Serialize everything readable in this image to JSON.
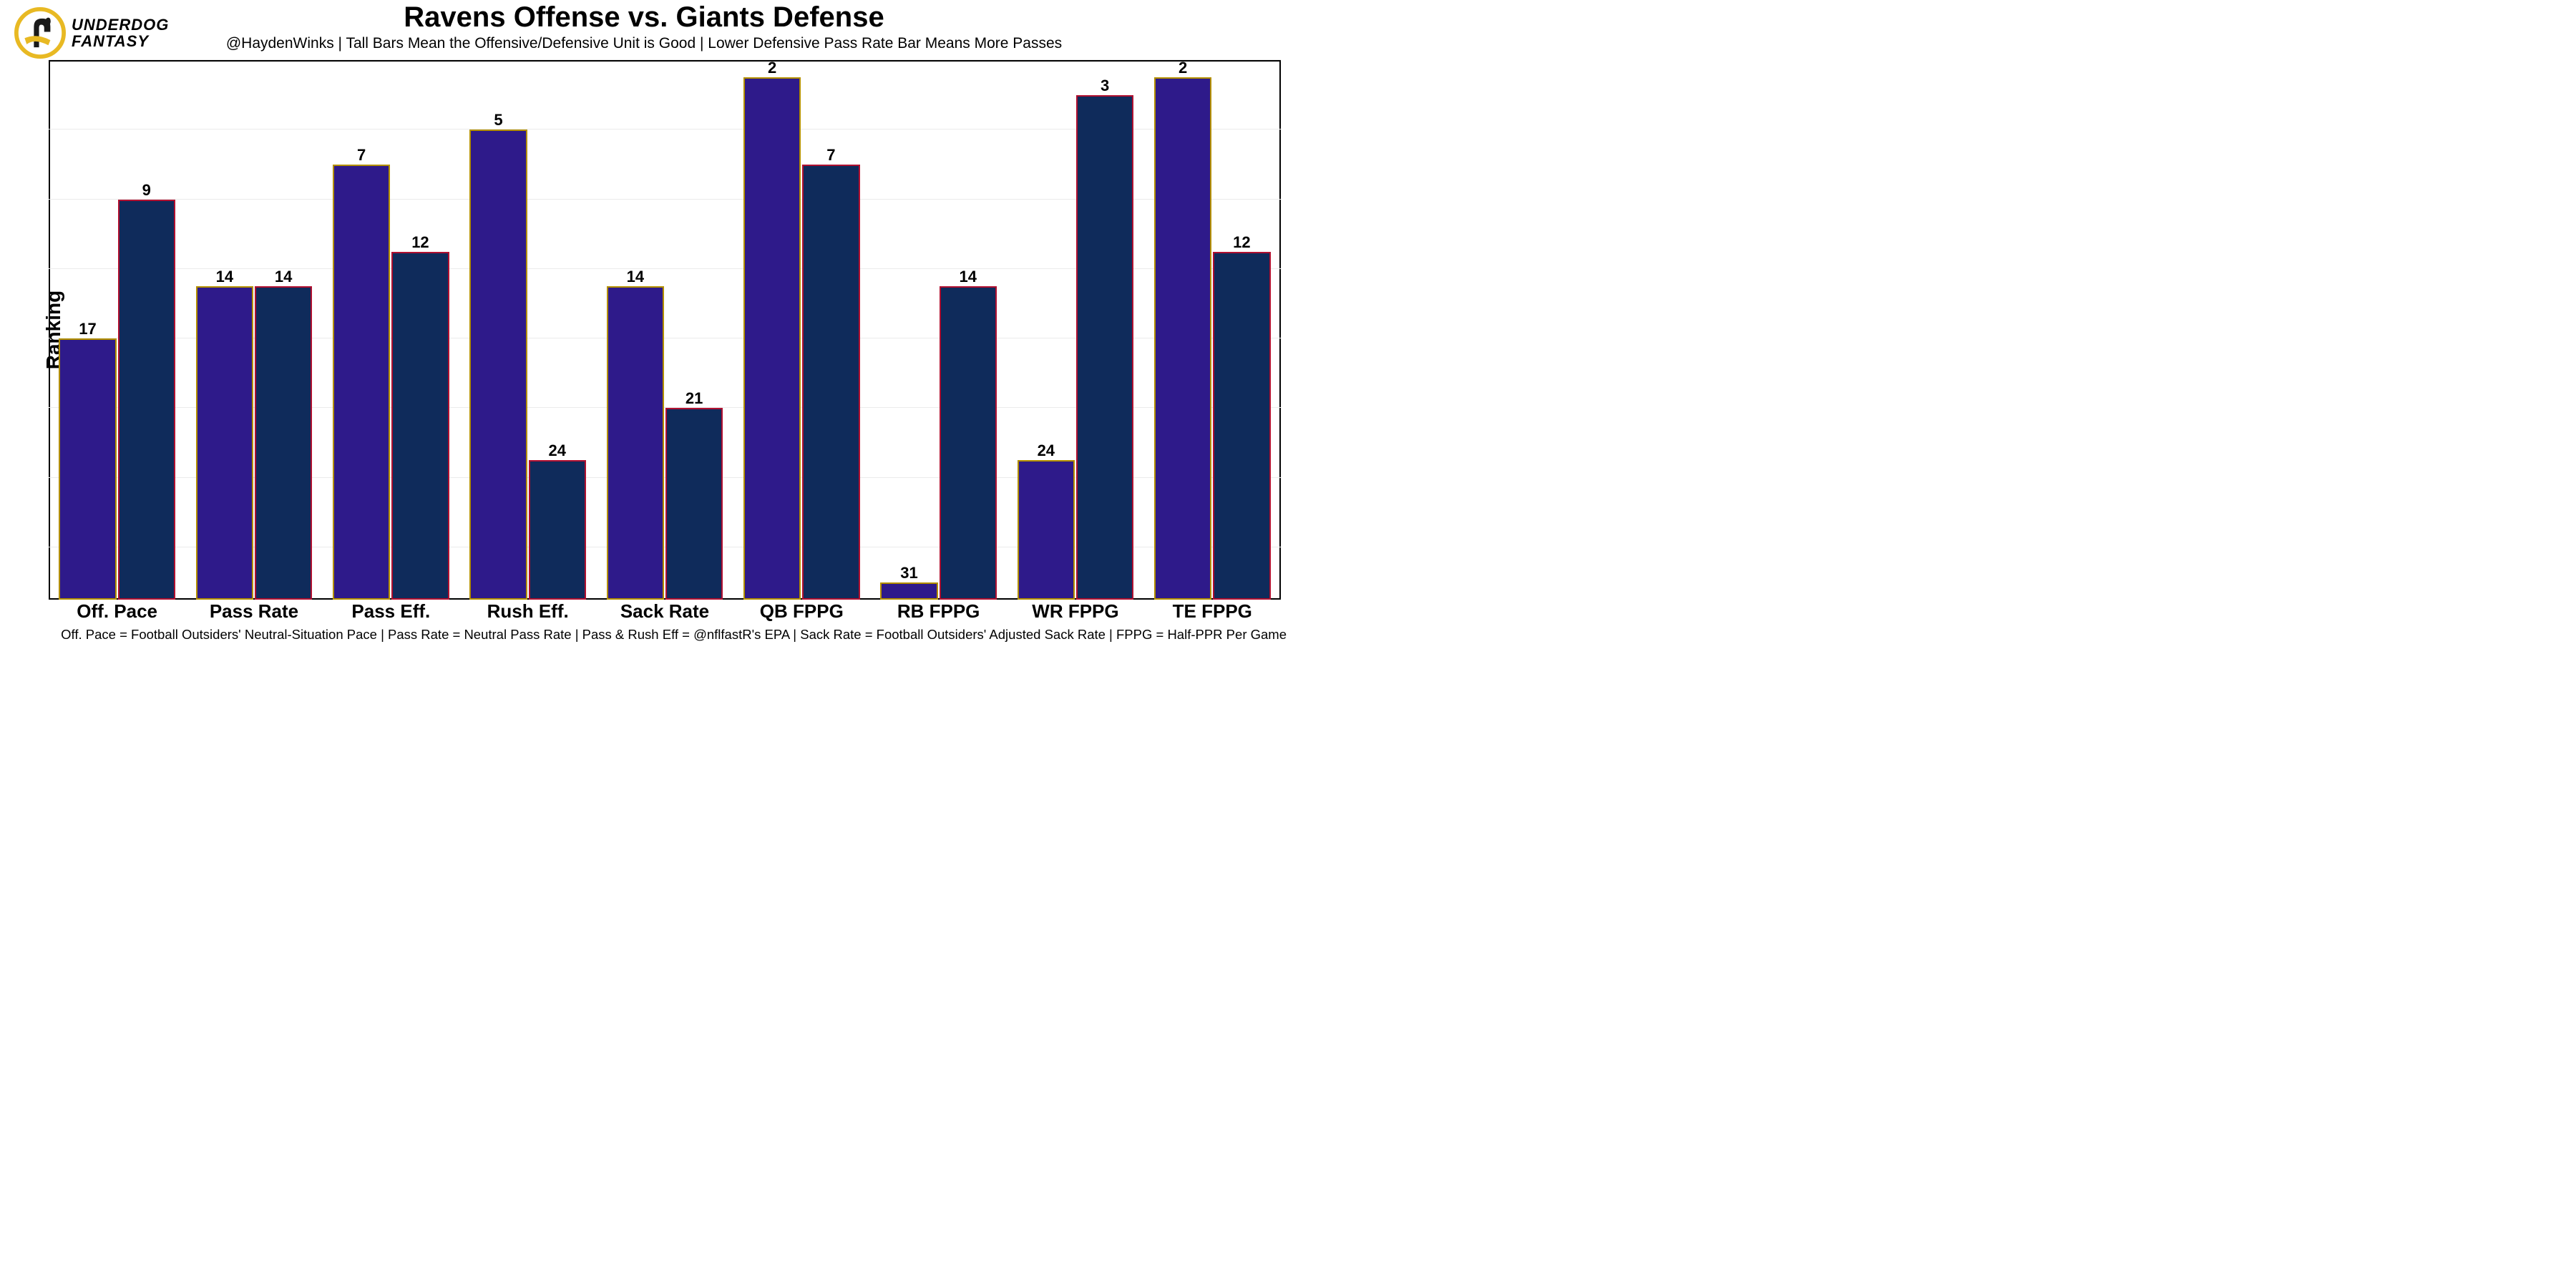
{
  "logo": {
    "line1": "UNDERDOG",
    "line2": "FANTASY",
    "circle_color": "#e8b923",
    "dog_color": "#1a1a1a",
    "scarf_color": "#e8b923"
  },
  "title": "Ravens Offense vs. Giants Defense",
  "subtitle": "@HaydenWinks | Tall Bars Mean the Offensive/Defensive Unit is Good | Lower Defensive Pass Rate Bar Means More Passes",
  "ylabel": "Ranking",
  "footnote": "Off. Pace = Football Outsiders' Neutral-Situation Pace | Pass Rate = Neutral Pass Rate | Pass & Rush Eff = @nflfastR's EPA | Sack Rate = Football Outsiders' Adjusted Sack Rate | FPPG = Half-PPR Per Game",
  "chart": {
    "type": "grouped-bar",
    "rank_max": 32,
    "rank_min": 1,
    "grid_step": 4,
    "background_color": "#ffffff",
    "grid_color": "#ebebeb",
    "border_color": "#000000",
    "bar_width_pct": 42,
    "bar_gap_pct": 1,
    "bar_border_width": 2,
    "label_fontsize": 22,
    "xlabel_fontsize": 26,
    "series": [
      {
        "name": "offense",
        "fill": "#2e1a8a",
        "stroke": "#b38f00"
      },
      {
        "name": "defense",
        "fill": "#0f2b5b",
        "stroke": "#b01030"
      }
    ],
    "categories": [
      {
        "label": "Off. Pace",
        "values": [
          17,
          9
        ]
      },
      {
        "label": "Pass Rate",
        "values": [
          14,
          14
        ]
      },
      {
        "label": "Pass Eff.",
        "values": [
          7,
          12
        ]
      },
      {
        "label": "Rush Eff.",
        "values": [
          5,
          24
        ]
      },
      {
        "label": "Sack Rate",
        "values": [
          14,
          21
        ]
      },
      {
        "label": "QB FPPG",
        "values": [
          2,
          7
        ]
      },
      {
        "label": "RB FPPG",
        "values": [
          31,
          14
        ]
      },
      {
        "label": "WR FPPG",
        "values": [
          24,
          3
        ]
      },
      {
        "label": "TE FPPG",
        "values": [
          2,
          12
        ]
      }
    ]
  }
}
